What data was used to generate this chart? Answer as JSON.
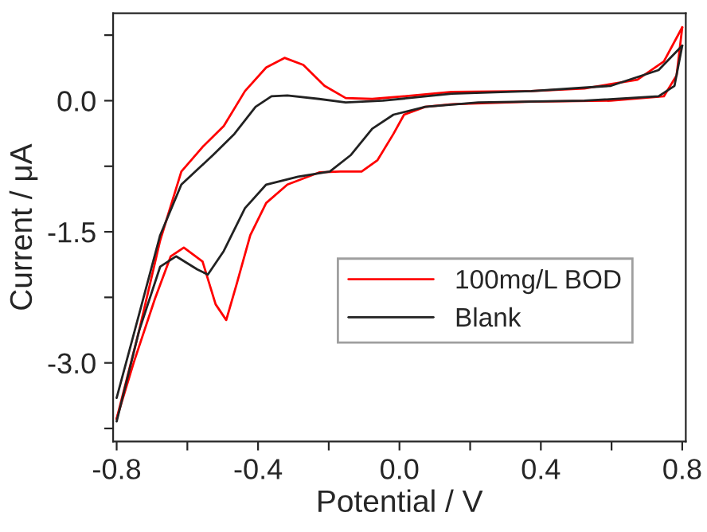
{
  "chart_data": {
    "type": "line",
    "xlabel": "Potential / V",
    "ylabel": "Current / μA",
    "xlim": [
      -0.81,
      0.81
    ],
    "ylim": [
      -3.9,
      1.0
    ],
    "xticks": [
      {
        "value": -0.8,
        "label": "-0.8"
      },
      {
        "value": -0.6,
        "label": null
      },
      {
        "value": -0.4,
        "label": "-0.4"
      },
      {
        "value": -0.2,
        "label": null
      },
      {
        "value": 0.0,
        "label": "0.0"
      },
      {
        "value": 0.2,
        "label": null
      },
      {
        "value": 0.4,
        "label": "0.4"
      },
      {
        "value": 0.6,
        "label": null
      },
      {
        "value": 0.8,
        "label": "0.8"
      }
    ],
    "yticks": [
      {
        "value": -3.75,
        "label": null
      },
      {
        "value": -3.0,
        "label": "-3.0"
      },
      {
        "value": -2.25,
        "label": null
      },
      {
        "value": -1.5,
        "label": "-1.5"
      },
      {
        "value": -0.75,
        "label": null
      },
      {
        "value": 0.0,
        "label": "0.0"
      },
      {
        "value": 0.75,
        "label": null
      }
    ],
    "grid": false,
    "legend": "bottom right",
    "series": [
      {
        "name": "100mg/L BOD",
        "color": "#ff0000",
        "x": [
          -0.8,
          -0.737,
          -0.677,
          -0.617,
          -0.557,
          -0.497,
          -0.437,
          -0.377,
          -0.325,
          -0.272,
          -0.212,
          -0.152,
          -0.077,
          0.013,
          0.148,
          0.373,
          0.523,
          0.673,
          0.748,
          0.8
        ],
        "values": [
          -3.64,
          -2.64,
          -1.6,
          -0.81,
          -0.53,
          -0.29,
          0.11,
          0.38,
          0.49,
          0.41,
          0.17,
          0.03,
          0.02,
          0.05,
          0.1,
          0.11,
          0.14,
          0.24,
          0.45,
          0.84
        ]
      },
      {
        "color": "#ff0000",
        "x": [
          0.8,
          0.784,
          0.748,
          0.598,
          0.373,
          0.148,
          0.073,
          0.013,
          -0.017,
          -0.062,
          -0.107,
          -0.167,
          -0.227,
          -0.317,
          -0.377,
          -0.422,
          -0.46,
          -0.49,
          -0.52,
          -0.557,
          -0.61,
          -0.647,
          -0.692,
          -0.752,
          -0.8
        ],
        "values": [
          0.84,
          0.29,
          0.05,
          0.0,
          -0.01,
          -0.04,
          -0.07,
          -0.16,
          -0.38,
          -0.68,
          -0.81,
          -0.81,
          -0.82,
          -0.96,
          -1.17,
          -1.54,
          -2.09,
          -2.51,
          -2.33,
          -1.84,
          -1.68,
          -1.78,
          -2.27,
          -3.0,
          -3.64
        ]
      },
      {
        "name": "Blank",
        "color": "#222222",
        "x": [
          -0.8,
          -0.737,
          -0.677,
          -0.617,
          -0.527,
          -0.467,
          -0.407,
          -0.362,
          -0.317,
          -0.227,
          -0.152,
          -0.047,
          0.148,
          0.373,
          0.598,
          0.733,
          0.8
        ],
        "values": [
          -3.4,
          -2.45,
          -1.54,
          -0.96,
          -0.62,
          -0.38,
          -0.07,
          0.05,
          0.06,
          0.02,
          -0.02,
          0.0,
          0.08,
          0.11,
          0.17,
          0.35,
          0.63
        ]
      },
      {
        "color": "#222222",
        "x": [
          0.8,
          0.778,
          0.733,
          0.523,
          0.223,
          0.073,
          -0.017,
          -0.077,
          -0.137,
          -0.197,
          -0.287,
          -0.377,
          -0.437,
          -0.497,
          -0.542,
          -0.572,
          -0.632,
          -0.677,
          -0.737,
          -0.8
        ],
        "values": [
          0.63,
          0.17,
          0.05,
          0.0,
          -0.02,
          -0.07,
          -0.16,
          -0.32,
          -0.62,
          -0.81,
          -0.87,
          -0.96,
          -1.23,
          -1.72,
          -1.99,
          -1.93,
          -1.78,
          -1.9,
          -2.64,
          -3.67
        ]
      }
    ]
  }
}
